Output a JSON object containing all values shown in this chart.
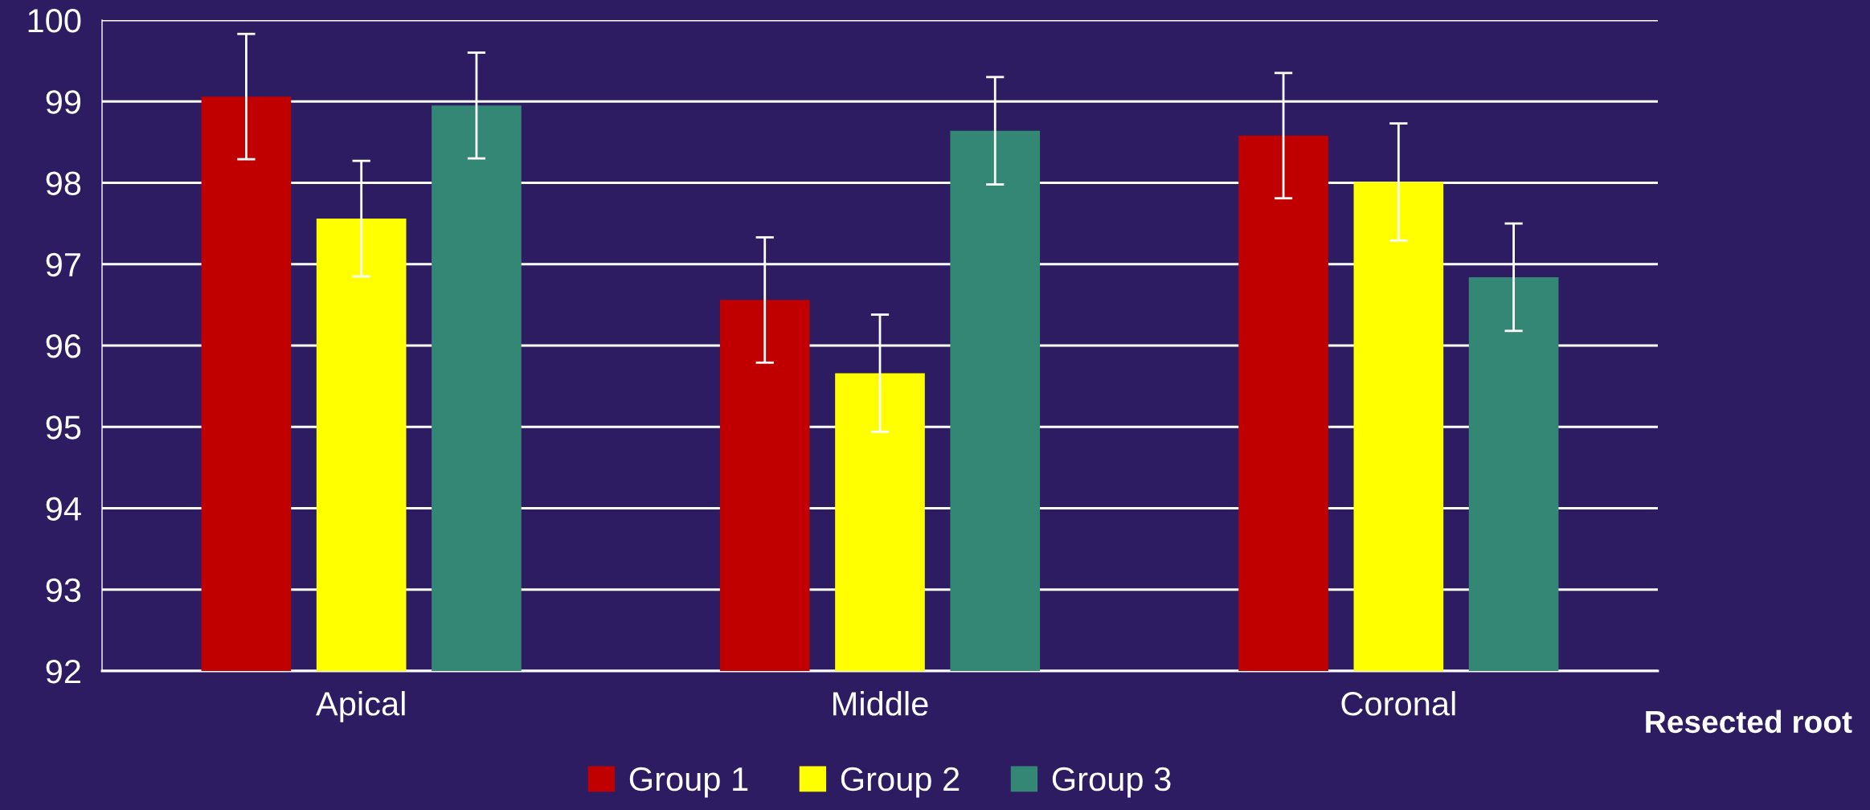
{
  "chart_data": {
    "type": "bar",
    "xlabel": "Resected root",
    "categories": [
      "Apical",
      "Middle",
      "Coronal"
    ],
    "series": [
      {
        "name": "Group 1",
        "color": "#c00000",
        "values": [
          99.06,
          96.56,
          98.58
        ],
        "errors": [
          0.77,
          0.77,
          0.77
        ]
      },
      {
        "name": "Group 2",
        "color": "#ffff00",
        "values": [
          97.56,
          95.66,
          98.01
        ],
        "errors": [
          0.71,
          0.72,
          0.72
        ]
      },
      {
        "name": "Group 3",
        "color": "#358775",
        "values": [
          98.95,
          98.64,
          96.84
        ],
        "errors": [
          0.65,
          0.66,
          0.66
        ]
      }
    ],
    "ylim": [
      92,
      100
    ],
    "yticks": [
      92,
      93,
      94,
      95,
      96,
      97,
      98,
      99,
      100
    ],
    "grid": "y",
    "legend": "bottom"
  }
}
